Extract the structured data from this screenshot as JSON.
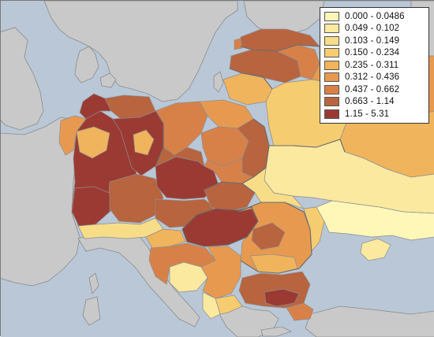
{
  "map": {
    "legend": {
      "classes": [
        {
          "label": "0.000 - 0.0486",
          "color": "#fff7b8"
        },
        {
          "label": "0.049 - 0.102",
          "color": "#fbe9a0"
        },
        {
          "label": "0.103 - 0.149",
          "color": "#f8dd88"
        },
        {
          "label": "0.150 - 0.234",
          "color": "#f5cc70"
        },
        {
          "label": "0.235 - 0.311",
          "color": "#f0b45c"
        },
        {
          "label": "0.312 - 0.436",
          "color": "#e79a4f"
        },
        {
          "label": "0.437 - 0.662",
          "color": "#d78149"
        },
        {
          "label": "0.663 - 1.14",
          "color": "#b8643f"
        },
        {
          "label": "1.15 - 5.31",
          "color": "#9b3a33"
        }
      ]
    },
    "colors": {
      "sea": "#b9c7d6",
      "background_land": "#c9c9c9",
      "borders": "#8d8d8d"
    }
  }
}
